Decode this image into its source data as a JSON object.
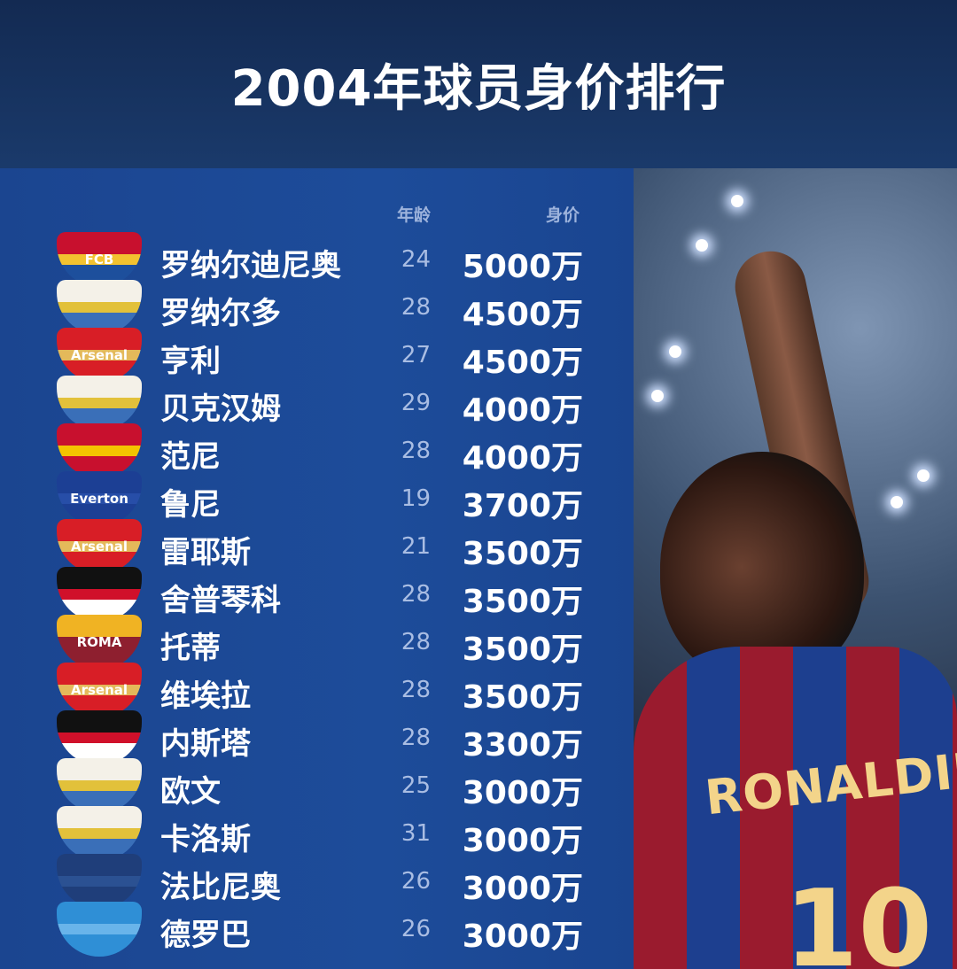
{
  "title": "2004年球员身价排行",
  "columns": {
    "age": "年龄",
    "value": "身价"
  },
  "rows": [
    {
      "name": "罗纳尔迪尼奥",
      "age": "24",
      "value": "5000万",
      "club": "FCB",
      "crest_colors": [
        "#c8102e",
        "#f2c230",
        "#1d4f9c"
      ]
    },
    {
      "name": "罗纳尔多",
      "age": "28",
      "value": "4500万",
      "club": "",
      "crest_colors": [
        "#f4f1e8",
        "#e2c13a",
        "#3a6fb8"
      ]
    },
    {
      "name": "亨利",
      "age": "27",
      "value": "4500万",
      "club": "Arsenal",
      "crest_colors": [
        "#d81e26",
        "#e4b95a",
        "#d81e26"
      ]
    },
    {
      "name": "贝克汉姆",
      "age": "29",
      "value": "4000万",
      "club": "",
      "crest_colors": [
        "#f4f1e8",
        "#e2c13a",
        "#3a6fb8"
      ]
    },
    {
      "name": "范尼",
      "age": "28",
      "value": "4000万",
      "club": "",
      "crest_colors": [
        "#c8102e",
        "#f4c300",
        "#c8102e"
      ]
    },
    {
      "name": "鲁尼",
      "age": "19",
      "value": "3700万",
      "club": "Everton",
      "crest_colors": [
        "#1c3f94",
        "#274ea8",
        "#1c3f94"
      ]
    },
    {
      "name": "雷耶斯",
      "age": "21",
      "value": "3500万",
      "club": "Arsenal",
      "crest_colors": [
        "#d81e26",
        "#e4b95a",
        "#d81e26"
      ]
    },
    {
      "name": "舍普琴科",
      "age": "28",
      "value": "3500万",
      "club": "",
      "crest_colors": [
        "#111111",
        "#d0102a",
        "#ffffff"
      ]
    },
    {
      "name": "托蒂",
      "age": "28",
      "value": "3500万",
      "club": "ROMA",
      "crest_colors": [
        "#f0b323",
        "#8e1f2f",
        "#8e1f2f"
      ]
    },
    {
      "name": "维埃拉",
      "age": "28",
      "value": "3500万",
      "club": "Arsenal",
      "crest_colors": [
        "#d81e26",
        "#e4b95a",
        "#d81e26"
      ]
    },
    {
      "name": "内斯塔",
      "age": "28",
      "value": "3300万",
      "club": "",
      "crest_colors": [
        "#111111",
        "#d0102a",
        "#ffffff"
      ]
    },
    {
      "name": "欧文",
      "age": "25",
      "value": "3000万",
      "club": "",
      "crest_colors": [
        "#f4f1e8",
        "#e2c13a",
        "#3a6fb8"
      ]
    },
    {
      "name": "卡洛斯",
      "age": "31",
      "value": "3000万",
      "club": "",
      "crest_colors": [
        "#f4f1e8",
        "#e2c13a",
        "#3a6fb8"
      ]
    },
    {
      "name": "法比尼奥",
      "age": "26",
      "value": "3000万",
      "club": "",
      "crest_colors": [
        "#1f3e7a",
        "#2b5192",
        "#1f3e7a"
      ]
    },
    {
      "name": "德罗巴",
      "age": "26",
      "value": "3000万",
      "club": "",
      "crest_colors": [
        "#2f8fd6",
        "#69b4ea",
        "#2f8fd6"
      ]
    }
  ],
  "photo": {
    "jersey_text": "RONALDINH",
    "jersey_number": "10"
  }
}
